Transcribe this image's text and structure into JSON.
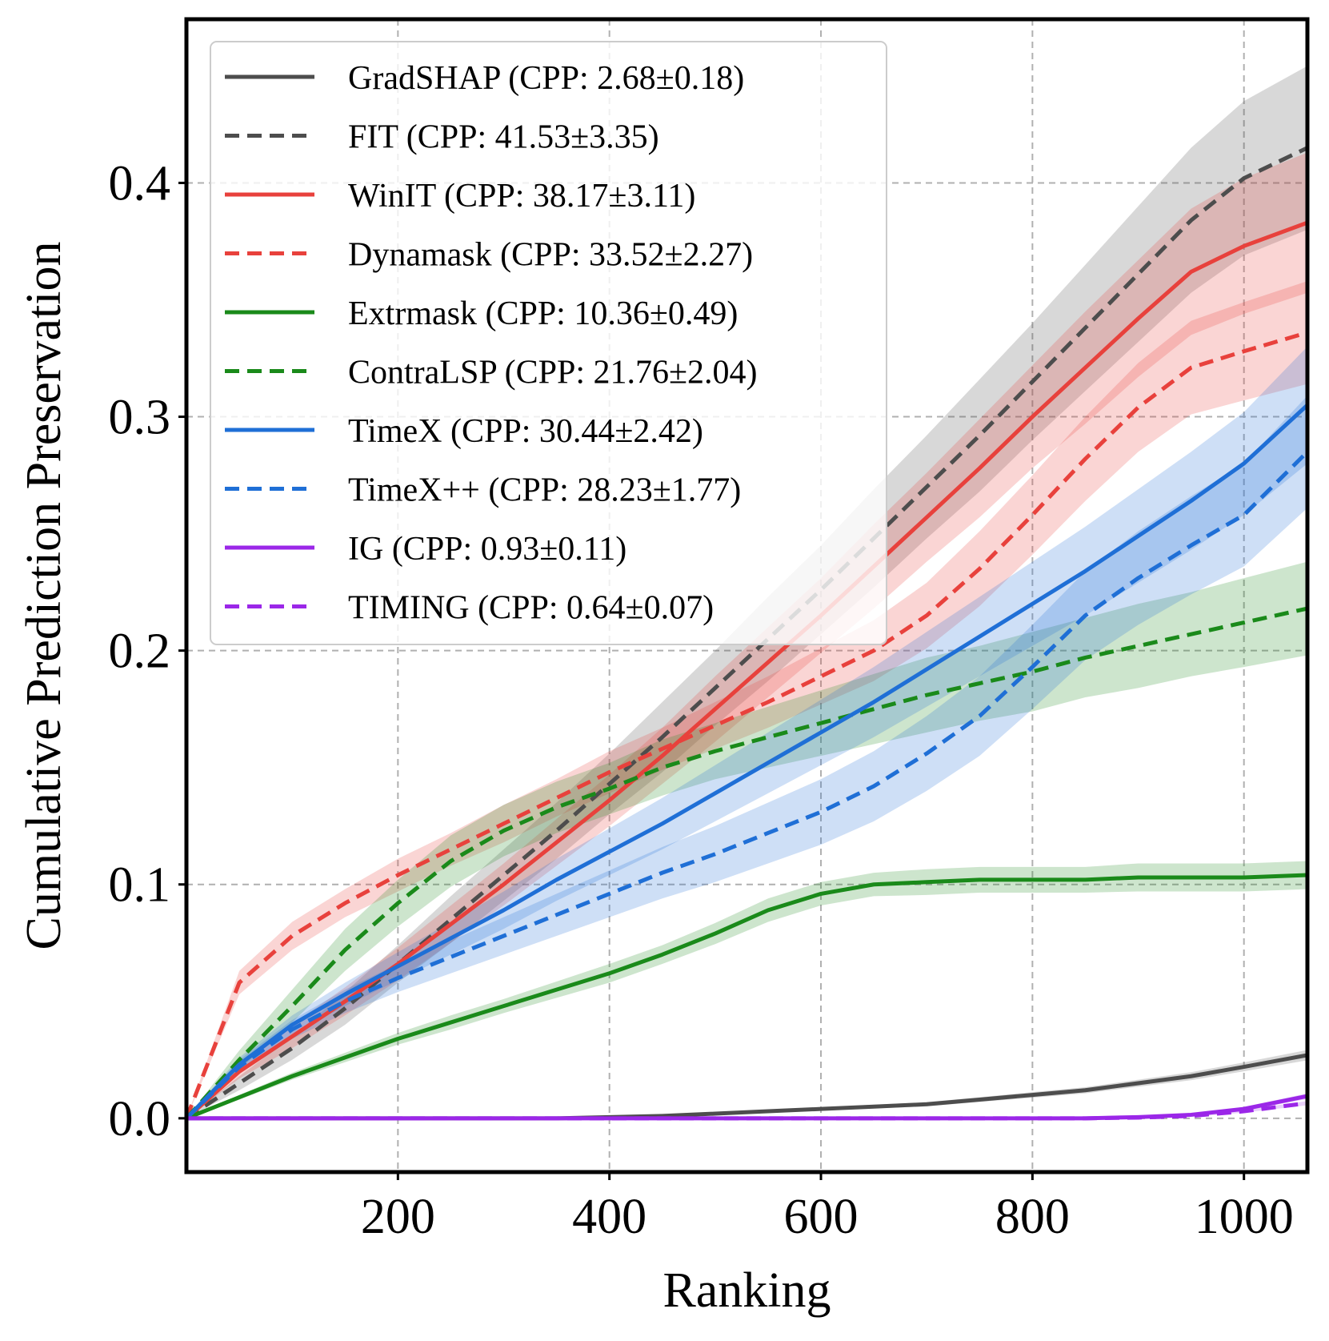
{
  "chart_data": {
    "type": "line",
    "title": "",
    "xlabel": "Ranking",
    "ylabel": "Cumulative Prediction Preservation",
    "xlim": [
      0,
      1060
    ],
    "ylim": [
      -0.023,
      0.47
    ],
    "xticks": [
      200,
      400,
      600,
      800,
      1000
    ],
    "xtick_labels": [
      "200",
      "400",
      "600",
      "800",
      "1000"
    ],
    "yticks": [
      0.0,
      0.1,
      0.2,
      0.3,
      0.4
    ],
    "ytick_labels": [
      "0.0",
      "0.1",
      "0.2",
      "0.3",
      "0.4"
    ],
    "grid": true,
    "legend_position": "top-left",
    "x": [
      0,
      50,
      100,
      150,
      200,
      250,
      300,
      350,
      400,
      450,
      500,
      550,
      600,
      650,
      700,
      750,
      800,
      850,
      900,
      950,
      1000,
      1060
    ],
    "series": [
      {
        "name": "GradSHAP (CPP: 2.68±0.18)",
        "color": "#4d4d4d",
        "dash": "solid",
        "values": [
          0,
          0,
          0,
          0,
          0,
          0,
          0,
          0,
          0.0005,
          0.001,
          0.002,
          0.003,
          0.004,
          0.005,
          0.006,
          0.008,
          0.01,
          0.012,
          0.015,
          0.018,
          0.022,
          0.027
        ],
        "band": [
          0,
          0,
          0,
          0,
          0,
          0,
          0,
          0,
          0.0003,
          0.0004,
          0.0005,
          0.0006,
          0.0007,
          0.0008,
          0.0009,
          0.001,
          0.0012,
          0.0013,
          0.0015,
          0.0017,
          0.0019,
          0.0022
        ]
      },
      {
        "name": "FIT (CPP: 41.53±3.35)",
        "color": "#4d4d4d",
        "dash": "dashed",
        "values": [
          0,
          0.015,
          0.03,
          0.047,
          0.066,
          0.085,
          0.104,
          0.123,
          0.143,
          0.163,
          0.184,
          0.205,
          0.226,
          0.248,
          0.27,
          0.292,
          0.315,
          0.338,
          0.361,
          0.384,
          0.402,
          0.415
        ],
        "band": [
          0,
          0.003,
          0.005,
          0.007,
          0.008,
          0.01,
          0.011,
          0.012,
          0.013,
          0.015,
          0.016,
          0.018,
          0.019,
          0.021,
          0.022,
          0.024,
          0.025,
          0.027,
          0.029,
          0.031,
          0.033,
          0.035
        ]
      },
      {
        "name": "WinIT (CPP: 38.17±3.11)",
        "color": "#e8413c",
        "dash": "solid",
        "values": [
          0,
          0.02,
          0.035,
          0.05,
          0.066,
          0.083,
          0.1,
          0.118,
          0.136,
          0.155,
          0.175,
          0.195,
          0.215,
          0.236,
          0.257,
          0.278,
          0.3,
          0.321,
          0.342,
          0.362,
          0.373,
          0.383
        ],
        "band": [
          0,
          0.003,
          0.005,
          0.006,
          0.007,
          0.008,
          0.009,
          0.01,
          0.011,
          0.012,
          0.014,
          0.015,
          0.016,
          0.018,
          0.019,
          0.021,
          0.022,
          0.024,
          0.025,
          0.027,
          0.029,
          0.03
        ]
      },
      {
        "name": "Dynamask (CPP: 33.52±2.27)",
        "color": "#e8413c",
        "dash": "dashed",
        "values": [
          0,
          0.058,
          0.078,
          0.092,
          0.104,
          0.115,
          0.126,
          0.137,
          0.148,
          0.158,
          0.168,
          0.178,
          0.189,
          0.2,
          0.215,
          0.235,
          0.258,
          0.282,
          0.304,
          0.321,
          0.328,
          0.336
        ],
        "band": [
          0,
          0.005,
          0.006,
          0.006,
          0.007,
          0.007,
          0.008,
          0.008,
          0.009,
          0.009,
          0.01,
          0.011,
          0.012,
          0.013,
          0.014,
          0.016,
          0.017,
          0.018,
          0.019,
          0.02,
          0.021,
          0.022
        ]
      },
      {
        "name": "Extrmask (CPP: 10.36±0.49)",
        "color": "#1a8a1a",
        "dash": "solid",
        "values": [
          0,
          0.009,
          0.018,
          0.026,
          0.034,
          0.041,
          0.048,
          0.055,
          0.062,
          0.07,
          0.079,
          0.089,
          0.096,
          0.1,
          0.101,
          0.102,
          0.102,
          0.102,
          0.103,
          0.103,
          0.103,
          0.104
        ],
        "band": [
          0,
          0.001,
          0.0015,
          0.002,
          0.0025,
          0.003,
          0.003,
          0.0035,
          0.004,
          0.004,
          0.0045,
          0.005,
          0.005,
          0.005,
          0.0055,
          0.0055,
          0.0055,
          0.0055,
          0.006,
          0.006,
          0.006,
          0.006
        ]
      },
      {
        "name": "ContraLSP (CPP: 21.76±2.04)",
        "color": "#1a8a1a",
        "dash": "dashed",
        "values": [
          0,
          0.025,
          0.048,
          0.072,
          0.092,
          0.11,
          0.123,
          0.133,
          0.141,
          0.15,
          0.157,
          0.163,
          0.169,
          0.175,
          0.181,
          0.186,
          0.191,
          0.197,
          0.202,
          0.207,
          0.212,
          0.218
        ],
        "band": [
          0,
          0.004,
          0.007,
          0.009,
          0.01,
          0.011,
          0.011,
          0.011,
          0.011,
          0.012,
          0.012,
          0.013,
          0.014,
          0.015,
          0.016,
          0.016,
          0.017,
          0.017,
          0.018,
          0.018,
          0.019,
          0.02
        ]
      },
      {
        "name": "TimeX (CPP: 30.44±2.42)",
        "color": "#1f6fd6",
        "dash": "solid",
        "values": [
          0,
          0.023,
          0.04,
          0.053,
          0.065,
          0.077,
          0.089,
          0.102,
          0.114,
          0.126,
          0.139,
          0.152,
          0.165,
          0.178,
          0.192,
          0.206,
          0.22,
          0.234,
          0.249,
          0.264,
          0.28,
          0.305
        ],
        "band": [
          0,
          0.003,
          0.004,
          0.005,
          0.006,
          0.007,
          0.008,
          0.009,
          0.01,
          0.011,
          0.012,
          0.013,
          0.014,
          0.015,
          0.016,
          0.017,
          0.018,
          0.019,
          0.02,
          0.021,
          0.022,
          0.025
        ]
      },
      {
        "name": "TimeX++ (CPP: 28.23±1.77)",
        "color": "#1f6fd6",
        "dash": "dashed",
        "values": [
          0,
          0.022,
          0.038,
          0.05,
          0.06,
          0.069,
          0.078,
          0.087,
          0.096,
          0.105,
          0.113,
          0.122,
          0.131,
          0.142,
          0.156,
          0.172,
          0.193,
          0.215,
          0.231,
          0.245,
          0.258,
          0.285
        ],
        "band": [
          0,
          0.003,
          0.004,
          0.005,
          0.006,
          0.007,
          0.008,
          0.009,
          0.01,
          0.011,
          0.012,
          0.013,
          0.014,
          0.015,
          0.016,
          0.017,
          0.018,
          0.019,
          0.02,
          0.021,
          0.022,
          0.024
        ]
      },
      {
        "name": "IG (CPP: 0.93±0.11)",
        "color": "#9b27e8",
        "dash": "solid",
        "values": [
          0,
          0,
          0,
          0,
          0,
          0,
          0,
          0,
          0,
          0,
          0,
          0,
          0,
          0,
          0,
          0,
          0,
          0,
          0.0005,
          0.0015,
          0.004,
          0.0095
        ],
        "band": [
          0,
          0,
          0,
          0,
          0,
          0,
          0,
          0,
          0,
          0,
          0,
          0,
          0,
          0,
          0,
          0,
          0,
          0,
          0.0003,
          0.0005,
          0.0008,
          0.0012
        ]
      },
      {
        "name": "TIMING (CPP: 0.64±0.07)",
        "color": "#9b27e8",
        "dash": "dashed",
        "values": [
          0,
          0,
          0,
          0,
          0,
          0,
          0,
          0,
          0,
          0,
          0,
          0,
          0,
          0,
          0,
          0,
          0,
          0,
          0.0003,
          0.001,
          0.003,
          0.0065
        ],
        "band": [
          0,
          0,
          0,
          0,
          0,
          0,
          0,
          0,
          0,
          0,
          0,
          0,
          0,
          0,
          0,
          0,
          0,
          0,
          0.0002,
          0.0004,
          0.0006,
          0.0009
        ]
      }
    ]
  }
}
